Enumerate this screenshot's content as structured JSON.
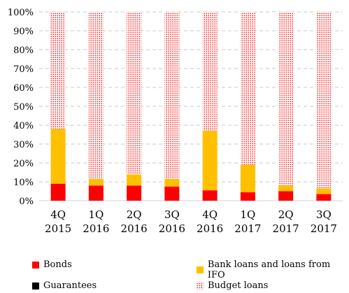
{
  "chart_data": {
    "type": "bar",
    "stacked": true,
    "categories": [
      [
        "4Q",
        "2015"
      ],
      [
        "1Q",
        "2016"
      ],
      [
        "2Q",
        "2016"
      ],
      [
        "3Q",
        "2016"
      ],
      [
        "4Q",
        "2016"
      ],
      [
        "1Q",
        "2017"
      ],
      [
        "2Q",
        "2017"
      ],
      [
        "3Q",
        "2017"
      ]
    ],
    "series": [
      {
        "name": "Bonds",
        "values": [
          9,
          8,
          8,
          7.5,
          5.5,
          4.5,
          5,
          3.5
        ],
        "color": "#ff0000",
        "pattern": "solid"
      },
      {
        "name": "Bank loans and loans from IFO",
        "values": [
          29,
          3.5,
          6,
          4,
          31.5,
          14.5,
          3,
          3
        ],
        "color": "#ffc000",
        "pattern": "solid"
      },
      {
        "name": "Guarantees",
        "values": [
          0,
          0,
          0,
          0,
          0,
          0,
          0,
          0
        ],
        "color": "#000000",
        "pattern": "solid"
      },
      {
        "name": "Budget loans",
        "values": [
          62,
          88.5,
          86,
          88.5,
          63,
          81,
          92,
          93.5
        ],
        "color": "#ff0000",
        "pattern": "dots"
      }
    ],
    "y_ticks": [
      "0%",
      "10%",
      "20%",
      "30%",
      "40%",
      "50%",
      "60%",
      "70%",
      "80%",
      "90%",
      "100%"
    ],
    "ylim": [
      0,
      100
    ],
    "grid": true,
    "legend_position": "bottom",
    "title": "",
    "xlabel": "",
    "ylabel": ""
  }
}
